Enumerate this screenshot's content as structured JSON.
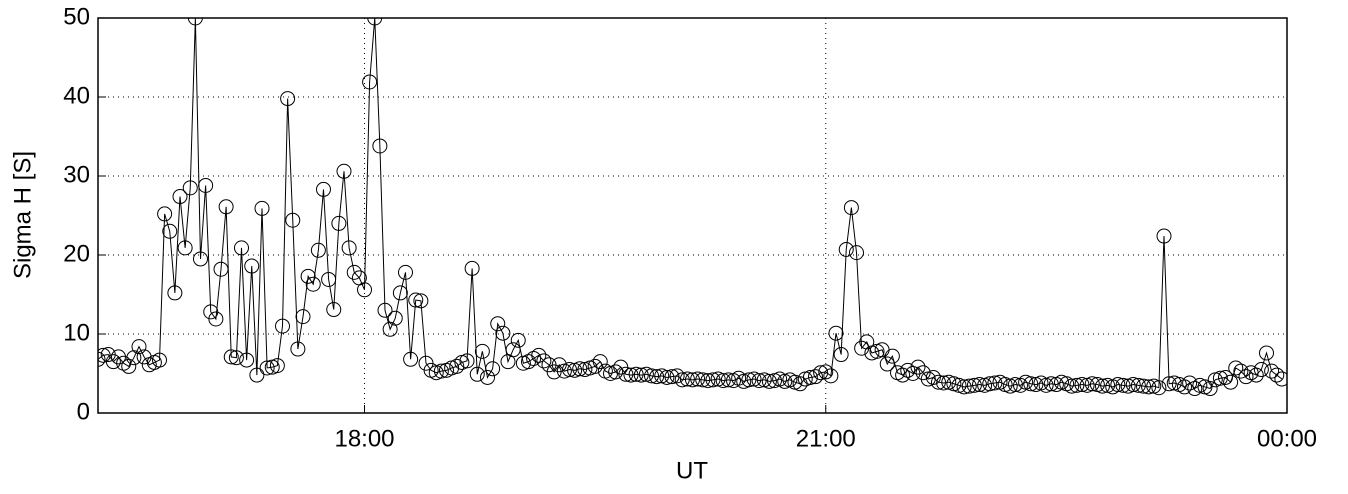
{
  "chart_data": {
    "type": "line",
    "xlabel": "UT",
    "ylabel": "Sigma H [S]",
    "x": [
      976,
      978,
      980,
      982,
      984,
      986,
      988,
      990,
      992,
      994,
      996,
      998,
      1000,
      1002,
      1004,
      1006,
      1008,
      1010,
      1012,
      1014,
      1016,
      1018,
      1020,
      1022,
      1024,
      1026,
      1028,
      1030,
      1032,
      1034,
      1036,
      1038,
      1040,
      1042,
      1044,
      1046,
      1048,
      1050,
      1052,
      1054,
      1056,
      1058,
      1060,
      1062,
      1064,
      1066,
      1068,
      1070,
      1072,
      1074,
      1076,
      1078,
      1080,
      1082,
      1084,
      1086,
      1088,
      1090,
      1092,
      1094,
      1096,
      1098,
      1100,
      1102,
      1104,
      1106,
      1108,
      1110,
      1112,
      1114,
      1116,
      1118,
      1120,
      1122,
      1124,
      1126,
      1128,
      1130,
      1132,
      1134,
      1136,
      1138,
      1140,
      1142,
      1144,
      1146,
      1148,
      1150,
      1152,
      1154,
      1156,
      1158,
      1160,
      1162,
      1164,
      1166,
      1168,
      1170,
      1172,
      1174,
      1176,
      1178,
      1180,
      1182,
      1184,
      1186,
      1188,
      1190,
      1192,
      1194,
      1196,
      1198,
      1200,
      1202,
      1204,
      1206,
      1208,
      1210,
      1212,
      1214,
      1216,
      1218,
      1220,
      1222,
      1224,
      1226,
      1228,
      1230,
      1232,
      1234,
      1236,
      1238,
      1240,
      1242,
      1244,
      1246,
      1248,
      1250,
      1252,
      1254,
      1256,
      1258,
      1260,
      1262,
      1264,
      1266,
      1268,
      1270,
      1272,
      1274,
      1276,
      1278,
      1280,
      1282,
      1284,
      1286,
      1288,
      1290,
      1292,
      1294,
      1296,
      1298,
      1300,
      1302,
      1304,
      1306,
      1308,
      1310,
      1312,
      1314,
      1316,
      1318,
      1320,
      1322,
      1324,
      1326,
      1328,
      1330,
      1332,
      1334,
      1336,
      1338,
      1340,
      1342,
      1344,
      1346,
      1348,
      1350,
      1352,
      1354,
      1356,
      1358,
      1360,
      1362,
      1364,
      1366,
      1368,
      1370,
      1372,
      1374,
      1376,
      1378,
      1380,
      1382,
      1384,
      1386,
      1388,
      1390,
      1392,
      1394,
      1396,
      1398,
      1400,
      1402,
      1404,
      1406,
      1408,
      1410,
      1412,
      1414,
      1416,
      1418,
      1420,
      1422,
      1424,
      1426,
      1428,
      1430,
      1432,
      1434,
      1436,
      1438
    ],
    "series": [
      {
        "color": "#000000",
        "values": [
          6.8,
          7.3,
          7.4,
          6.5,
          7.1,
          6.3,
          5.9,
          7,
          8.4,
          7.1,
          6.1,
          6.4,
          6.7,
          25.2,
          23,
          15.2,
          27.4,
          20.9,
          28.5,
          50,
          19.5,
          28.8,
          12.8,
          11.9,
          18.2,
          26.1,
          7.1,
          7,
          20.9,
          6.7,
          18.6,
          4.8,
          25.9,
          5.7,
          5.8,
          6,
          11,
          39.8,
          24.4,
          8.1,
          12.2,
          17.3,
          16.3,
          20.6,
          28.3,
          16.9,
          13.1,
          24,
          30.6,
          20.9,
          17.8,
          17.1,
          15.6,
          41.9,
          50,
          33.8,
          13,
          10.6,
          12,
          15.2,
          17.8,
          6.8,
          14.3,
          14.2,
          6.3,
          5.4,
          5.1,
          5.3,
          5.4,
          5.7,
          5.9,
          6.4,
          6.6,
          18.3,
          4.9,
          7.8,
          4.5,
          5.6,
          11.3,
          10.1,
          6.5,
          8,
          9.2,
          6.3,
          6.5,
          6.9,
          7.3,
          6.6,
          6.1,
          5.2,
          6.1,
          5.3,
          5.5,
          5.4,
          5.6,
          5.5,
          5.7,
          5.9,
          6.5,
          5.3,
          5,
          5.2,
          5.8,
          4.9,
          4.8,
          4.9,
          4.8,
          4.9,
          4.7,
          4.6,
          4.7,
          4.5,
          4.6,
          4.7,
          4.2,
          4.3,
          4.2,
          4.3,
          4.2,
          4.1,
          4.2,
          4.3,
          4.1,
          4.2,
          4.1,
          4.4,
          4,
          4.2,
          4.3,
          4.1,
          4.2,
          4,
          4.1,
          4.3,
          4,
          4.2,
          3.9,
          3.7,
          4.3,
          4.5,
          4.6,
          5.1,
          5.2,
          4.7,
          10.1,
          7.4,
          20.7,
          26,
          20.3,
          8.2,
          9,
          7.6,
          7.8,
          8,
          6.2,
          7.2,
          5.1,
          4.8,
          5.4,
          5,
          5.8,
          5.1,
          4.3,
          4.5,
          3.9,
          3.8,
          3.9,
          3.7,
          3.5,
          3.3,
          3.4,
          3.5,
          3.6,
          3.5,
          3.7,
          3.8,
          3.9,
          3.6,
          3.4,
          3.6,
          3.5,
          3.9,
          3.7,
          3.6,
          3.8,
          3.5,
          3.7,
          3.6,
          3.9,
          3.7,
          3.4,
          3.5,
          3.6,
          3.5,
          3.7,
          3.6,
          3.4,
          3.5,
          3.3,
          3.6,
          3.5,
          3.4,
          3.6,
          3.5,
          3.4,
          3.3,
          3.4,
          3.2,
          22.4,
          3.7,
          3.8,
          3.6,
          3.3,
          3.8,
          3.1,
          3.5,
          3.3,
          3.1,
          4.2,
          4.4,
          4.5,
          3.9,
          5.7,
          5.3,
          4.6,
          5.1,
          4.8,
          5.5,
          7.6,
          5.3,
          4.8,
          4.3
        ]
      }
    ],
    "xlim": [
      976,
      1440
    ],
    "xticks": [
      {
        "value": 1080,
        "label": "18:00"
      },
      {
        "value": 1260,
        "label": "21:00"
      },
      {
        "value": 1440,
        "label": "00:00"
      }
    ],
    "ylim": [
      0,
      50
    ],
    "yticks": [
      0,
      10,
      20,
      30,
      40,
      50
    ],
    "grid": true,
    "marker": "circle"
  }
}
